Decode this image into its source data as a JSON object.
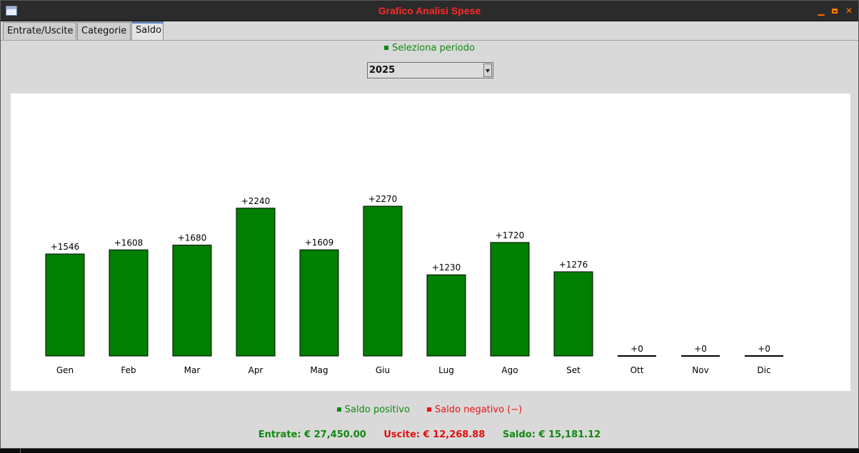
{
  "window": {
    "title": "Grafico Analisi Spese"
  },
  "tabs": [
    {
      "label": "Entrate/Uscite"
    },
    {
      "label": "Categorie"
    },
    {
      "label": "Saldo"
    }
  ],
  "period": {
    "label": "Seleziona periodo",
    "selected": "2025"
  },
  "colors": {
    "positive": "#008000",
    "negative": "#ff0000",
    "label_green": "#118811"
  },
  "chart_data": {
    "type": "bar",
    "categories": [
      "Gen",
      "Feb",
      "Mar",
      "Apr",
      "Mag",
      "Giu",
      "Lug",
      "Ago",
      "Set",
      "Ott",
      "Nov",
      "Dic"
    ],
    "values": [
      1546,
      1608,
      1680,
      2240,
      1609,
      2270,
      1230,
      1720,
      1276,
      0,
      0,
      0
    ],
    "data_labels": [
      "+1546",
      "+1608",
      "+1680",
      "+2240",
      "+1609",
      "+2270",
      "+1230",
      "+1720",
      "+1276",
      "+0",
      "+0",
      "+0"
    ],
    "title": "",
    "xlabel": "",
    "ylabel": "",
    "grid": false
  },
  "legend": {
    "positive": "Saldo positivo",
    "negative": "Saldo negativo (−)"
  },
  "totals": {
    "entrate": "Entrate: € 27,450.00",
    "uscite": "Uscite: € 12,268.88",
    "saldo": "Saldo: € 15,181.12"
  }
}
